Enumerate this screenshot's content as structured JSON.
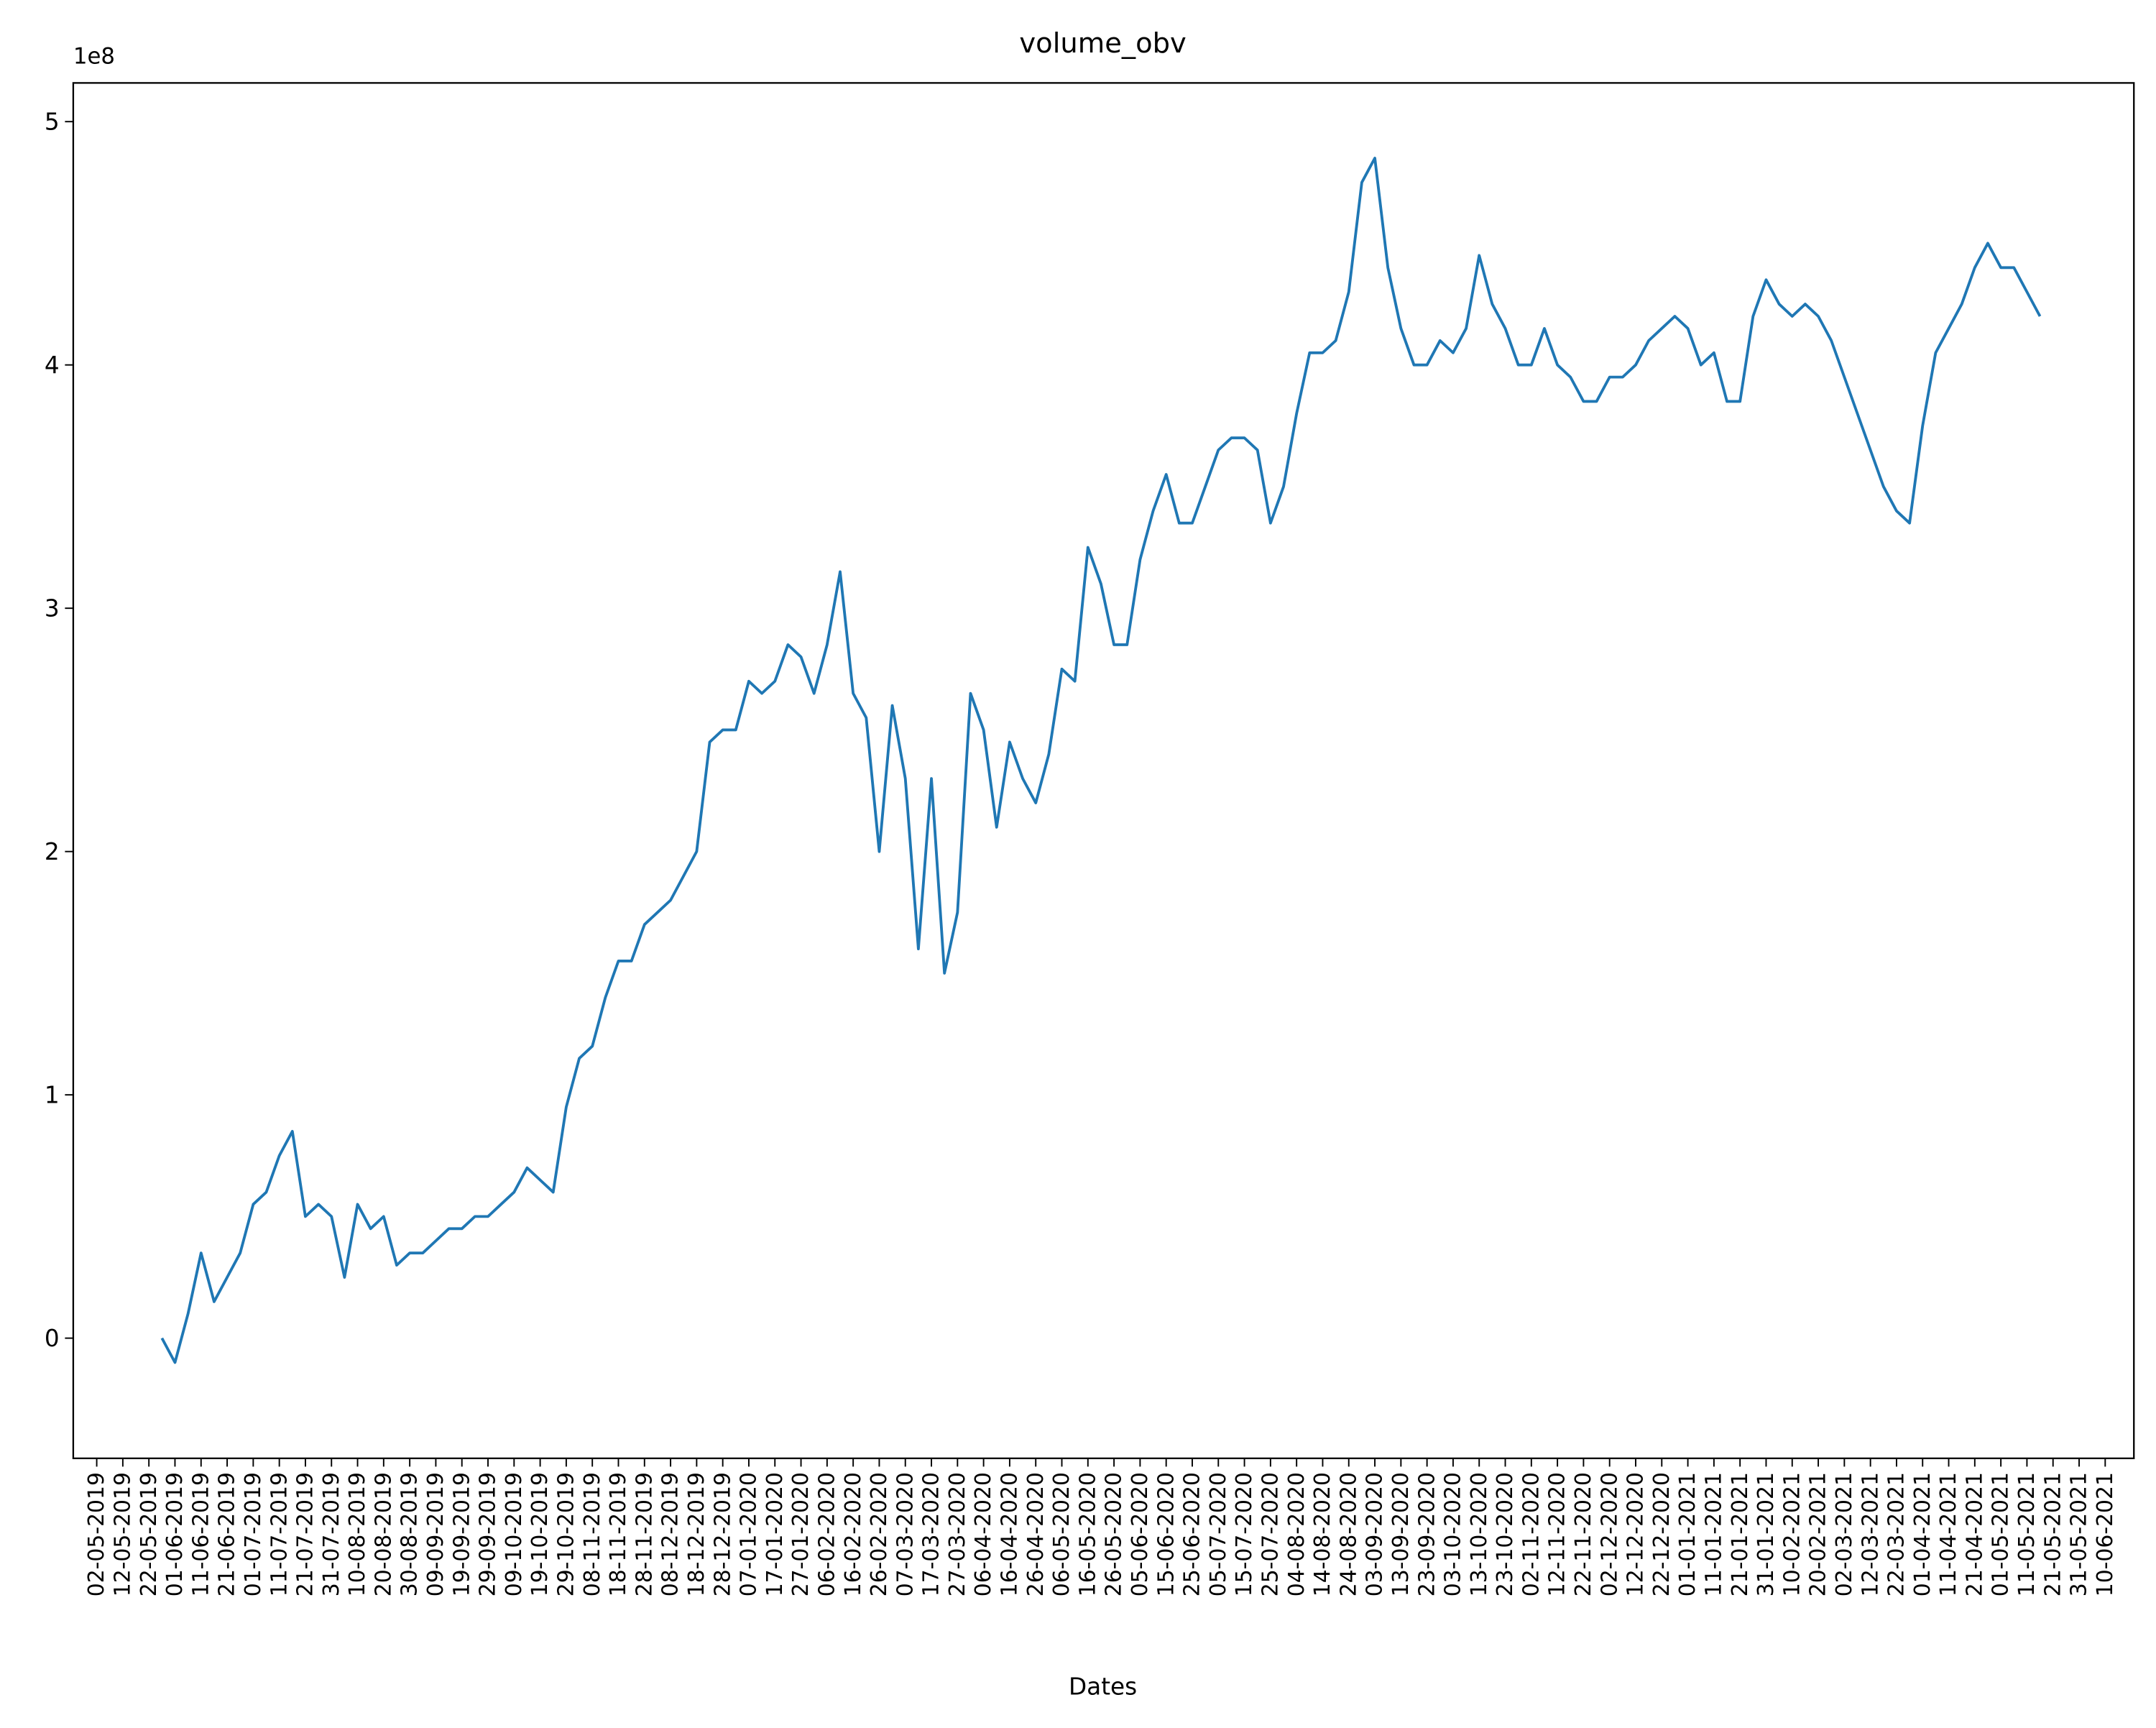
{
  "chart_data": {
    "type": "line",
    "title": "volume_obv",
    "xlabel": "Dates",
    "y_offset_label": "1e8",
    "color": "#1f77b4",
    "xlim": [
      "23-04-2019",
      "21-06-2021"
    ],
    "ylim": [
      -49400000,
      515900000
    ],
    "yticks": [
      {
        "value": 0,
        "label": "0"
      },
      {
        "value": 100000000,
        "label": "1"
      },
      {
        "value": 200000000,
        "label": "2"
      },
      {
        "value": 300000000,
        "label": "3"
      },
      {
        "value": 400000000,
        "label": "4"
      },
      {
        "value": 500000000,
        "label": "5"
      }
    ],
    "xticks": [
      "02-05-2019",
      "12-05-2019",
      "22-05-2019",
      "01-06-2019",
      "11-06-2019",
      "21-06-2019",
      "01-07-2019",
      "11-07-2019",
      "21-07-2019",
      "31-07-2019",
      "10-08-2019",
      "20-08-2019",
      "30-08-2019",
      "09-09-2019",
      "19-09-2019",
      "29-09-2019",
      "09-10-2019",
      "19-10-2019",
      "29-10-2019",
      "08-11-2019",
      "18-11-2019",
      "28-11-2019",
      "08-12-2019",
      "18-12-2019",
      "28-12-2019",
      "07-01-2020",
      "17-01-2020",
      "27-01-2020",
      "06-02-2020",
      "16-02-2020",
      "26-02-2020",
      "07-03-2020",
      "17-03-2020",
      "27-03-2020",
      "06-04-2020",
      "16-04-2020",
      "26-04-2020",
      "06-05-2020",
      "16-05-2020",
      "26-05-2020",
      "05-06-2020",
      "15-06-2020",
      "25-06-2020",
      "05-07-2020",
      "15-07-2020",
      "25-07-2020",
      "04-08-2020",
      "14-08-2020",
      "24-08-2020",
      "03-09-2020",
      "13-09-2020",
      "23-09-2020",
      "03-10-2020",
      "13-10-2020",
      "23-10-2020",
      "02-11-2020",
      "12-11-2020",
      "22-11-2020",
      "02-12-2020",
      "12-12-2020",
      "22-12-2020",
      "01-01-2021",
      "11-01-2021",
      "21-01-2021",
      "31-01-2021",
      "10-02-2021",
      "20-02-2021",
      "02-03-2021",
      "12-03-2021",
      "22-03-2021",
      "01-04-2021",
      "11-04-2021",
      "21-04-2021",
      "01-05-2021",
      "11-05-2021",
      "21-05-2021",
      "31-05-2021",
      "10-06-2021"
    ],
    "x": [
      "27-05-2019",
      "01-06-2019",
      "06-06-2019",
      "11-06-2019",
      "16-06-2019",
      "21-06-2019",
      "26-06-2019",
      "01-07-2019",
      "06-07-2019",
      "11-07-2019",
      "16-07-2019",
      "21-07-2019",
      "26-07-2019",
      "31-07-2019",
      "05-08-2019",
      "10-08-2019",
      "15-08-2019",
      "20-08-2019",
      "25-08-2019",
      "30-08-2019",
      "04-09-2019",
      "09-09-2019",
      "14-09-2019",
      "19-09-2019",
      "24-09-2019",
      "29-09-2019",
      "04-10-2019",
      "09-10-2019",
      "14-10-2019",
      "19-10-2019",
      "24-10-2019",
      "29-10-2019",
      "03-11-2019",
      "08-11-2019",
      "13-11-2019",
      "18-11-2019",
      "23-11-2019",
      "28-11-2019",
      "03-12-2019",
      "08-12-2019",
      "13-12-2019",
      "18-12-2019",
      "23-12-2019",
      "28-12-2019",
      "02-01-2020",
      "07-01-2020",
      "12-01-2020",
      "17-01-2020",
      "22-01-2020",
      "27-01-2020",
      "01-02-2020",
      "06-02-2020",
      "11-02-2020",
      "16-02-2020",
      "21-02-2020",
      "26-02-2020",
      "02-03-2020",
      "07-03-2020",
      "12-03-2020",
      "17-03-2020",
      "22-03-2020",
      "27-03-2020",
      "01-04-2020",
      "06-04-2020",
      "11-04-2020",
      "16-04-2020",
      "21-04-2020",
      "26-04-2020",
      "01-05-2020",
      "06-05-2020",
      "11-05-2020",
      "16-05-2020",
      "21-05-2020",
      "26-05-2020",
      "31-05-2020",
      "05-06-2020",
      "10-06-2020",
      "15-06-2020",
      "20-06-2020",
      "25-06-2020",
      "30-06-2020",
      "05-07-2020",
      "10-07-2020",
      "15-07-2020",
      "20-07-2020",
      "25-07-2020",
      "30-07-2020",
      "04-08-2020",
      "09-08-2020",
      "14-08-2020",
      "19-08-2020",
      "24-08-2020",
      "29-08-2020",
      "03-09-2020",
      "08-09-2020",
      "13-09-2020",
      "18-09-2020",
      "23-09-2020",
      "28-09-2020",
      "03-10-2020",
      "08-10-2020",
      "13-10-2020",
      "18-10-2020",
      "23-10-2020",
      "28-10-2020",
      "02-11-2020",
      "07-11-2020",
      "12-11-2020",
      "17-11-2020",
      "22-11-2020",
      "27-11-2020",
      "02-12-2020",
      "07-12-2020",
      "12-12-2020",
      "17-12-2020",
      "22-12-2020",
      "27-12-2020",
      "01-01-2021",
      "06-01-2021",
      "11-01-2021",
      "16-01-2021",
      "21-01-2021",
      "26-01-2021",
      "31-01-2021",
      "05-02-2021",
      "10-02-2021",
      "15-02-2021",
      "20-02-2021",
      "25-02-2021",
      "02-03-2021",
      "07-03-2021",
      "12-03-2021",
      "17-03-2021",
      "22-03-2021",
      "27-03-2021",
      "01-04-2021",
      "06-04-2021",
      "11-04-2021",
      "16-04-2021",
      "21-04-2021",
      "26-04-2021",
      "01-05-2021",
      "06-05-2021",
      "11-05-2021",
      "16-05-2021"
    ],
    "values": [
      0,
      -10000000,
      10000000,
      35000000,
      15000000,
      25000000,
      35000000,
      55000000,
      60000000,
      75000000,
      85000000,
      50000000,
      55000000,
      50000000,
      25000000,
      55000000,
      45000000,
      50000000,
      30000000,
      35000000,
      35000000,
      40000000,
      45000000,
      45000000,
      50000000,
      50000000,
      55000000,
      60000000,
      70000000,
      65000000,
      60000000,
      95000000,
      115000000,
      120000000,
      140000000,
      155000000,
      155000000,
      170000000,
      175000000,
      180000000,
      190000000,
      200000000,
      245000000,
      250000000,
      250000000,
      270000000,
      265000000,
      270000000,
      285000000,
      280000000,
      265000000,
      285000000,
      315000000,
      265000000,
      255000000,
      200000000,
      260000000,
      230000000,
      160000000,
      230000000,
      150000000,
      175000000,
      265000000,
      250000000,
      210000000,
      245000000,
      230000000,
      220000000,
      240000000,
      275000000,
      270000000,
      325000000,
      310000000,
      285000000,
      285000000,
      320000000,
      340000000,
      355000000,
      335000000,
      335000000,
      350000000,
      365000000,
      370000000,
      370000000,
      365000000,
      335000000,
      350000000,
      380000000,
      405000000,
      405000000,
      410000000,
      430000000,
      475000000,
      485000000,
      440000000,
      415000000,
      400000000,
      400000000,
      410000000,
      405000000,
      415000000,
      445000000,
      425000000,
      415000000,
      400000000,
      400000000,
      415000000,
      400000000,
      395000000,
      385000000,
      385000000,
      395000000,
      395000000,
      400000000,
      410000000,
      415000000,
      420000000,
      415000000,
      400000000,
      405000000,
      385000000,
      385000000,
      420000000,
      435000000,
      425000000,
      420000000,
      425000000,
      420000000,
      410000000,
      395000000,
      380000000,
      365000000,
      350000000,
      340000000,
      335000000,
      375000000,
      405000000,
      415000000,
      425000000,
      440000000,
      450000000,
      440000000,
      440000000,
      430000000,
      420000000
    ]
  }
}
